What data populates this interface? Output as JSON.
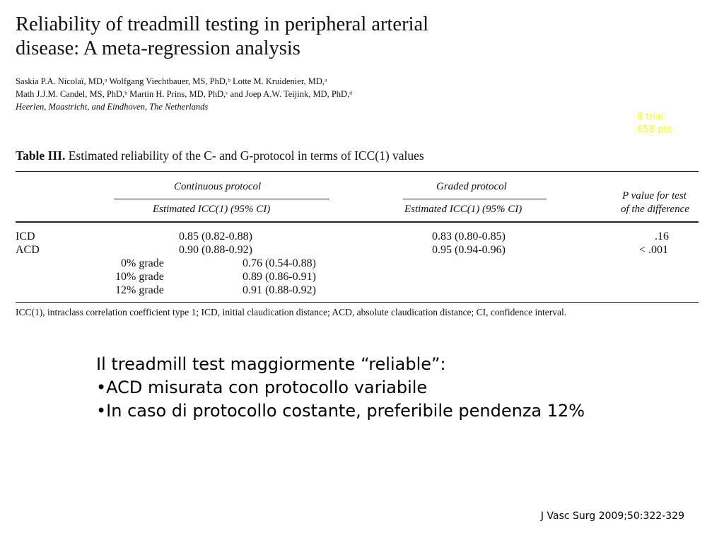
{
  "paper": {
    "title_line1": "Reliability of treadmill testing in peripheral arterial",
    "title_line2": "disease: A meta-regression analysis",
    "authors_line1": "Saskia P.A. Nicolaï, MD,ᵃ Wolfgang Viechtbauer, MS, PhD,ᵇ Lotte M. Kruidenier, MD,ᵃ",
    "authors_line2": "Math J.J.M. Candel, MS, PhD,ᵇ Martin H. Prins, MD, PhD,ᶜ and Joep A.W. Teijink, MD, PhD,ᵈ",
    "affiliation": "Heerlen, Maastricht, and Eindhoven, The Netherlands"
  },
  "annotation": {
    "line1": "8 trial",
    "line2": "658 pts",
    "color": "#ffff00"
  },
  "table": {
    "caption_label": "Table III.",
    "caption_text": "Estimated reliability of the C- and G-protocol in terms of ICC(1) values",
    "group_continuous": "Continuous protocol",
    "group_graded": "Graded protocol",
    "sub_continuous": "Estimated ICC(1) (95% CI)",
    "sub_graded": "Estimated ICC(1) (95% CI)",
    "pvalue_line1": "P value for test",
    "pvalue_line2": "of the difference",
    "rows": [
      {
        "label": "ICD",
        "continuous": "0.85 (0.82-0.88)",
        "graded": "0.83 (0.80-0.85)",
        "p": ".16"
      },
      {
        "label": "ACD",
        "continuous": "0.90 (0.88-0.92)",
        "graded": "0.95 (0.94-0.96)",
        "p": "< .001"
      }
    ],
    "sub_rows": [
      {
        "label": "0% grade",
        "value": "0.76 (0.54-0.88)"
      },
      {
        "label": "10% grade",
        "value": "0.89 (0.86-0.91)"
      },
      {
        "label": "12% grade",
        "value": "0.91 (0.88-0.92)"
      }
    ],
    "footnote": "ICC(1), intraclass correlation coefficient type 1; ICD, initial claudication distance; ACD, absolute claudication distance; CI, confidence interval."
  },
  "summary": {
    "heading": "Il treadmill test maggiormente “reliable”:",
    "bullets": [
      "ACD misurata con protocollo variabile",
      "In caso di protocollo costante, preferibile pendenza 12%"
    ]
  },
  "citation": "J Vasc Surg 2009;50:322-329"
}
